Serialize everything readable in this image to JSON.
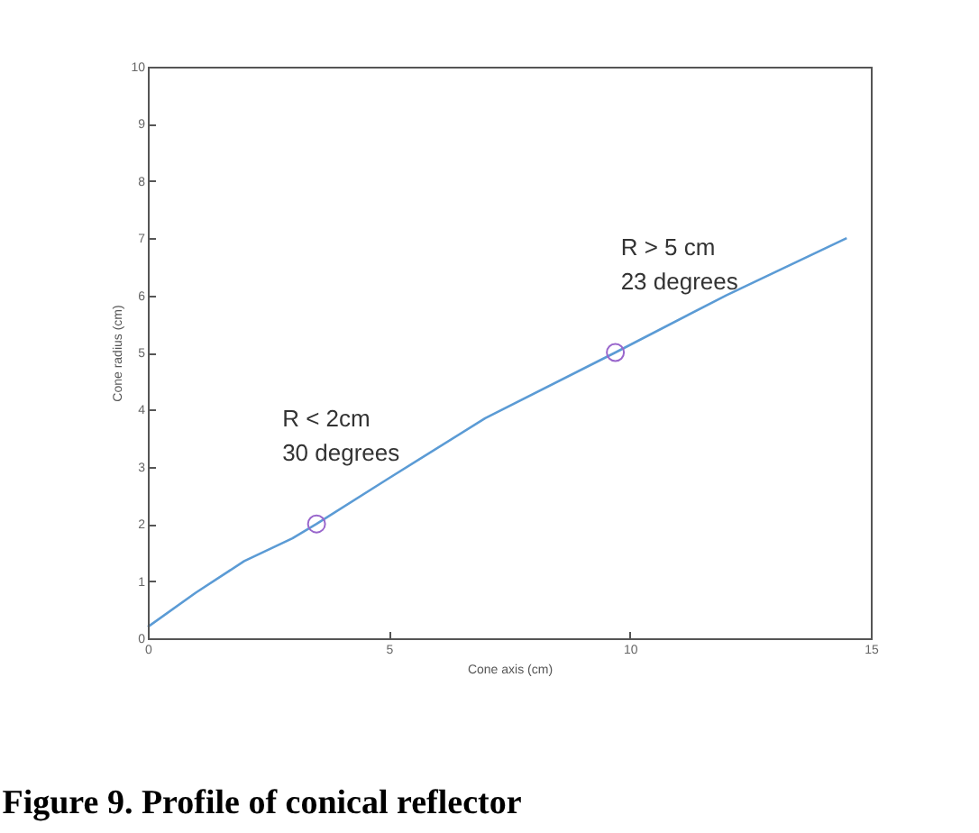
{
  "chart_data": {
    "type": "line",
    "title": "Figure 9. Profile of conical reflector",
    "xlabel": "Cone axis (cm)",
    "ylabel": "Cone radius (cm)",
    "xlim": [
      0,
      15
    ],
    "xticks": [
      0,
      5,
      10,
      15
    ],
    "ylim": [
      0,
      10
    ],
    "yticks": [
      0,
      1,
      2,
      3,
      4,
      5,
      6,
      7,
      8,
      9,
      10
    ],
    "grid": false,
    "series": [
      {
        "color": "#5b9bd5",
        "x": [
          0,
          1,
          2,
          3,
          3.5,
          5,
          7,
          9.7,
          12,
          14.5
        ],
        "values": [
          0.2,
          0.8,
          1.35,
          1.75,
          2,
          2.8,
          3.85,
          5,
          6,
          7
        ]
      },
      {
        "type": "scatter",
        "color": "#9966cc",
        "marker": "circle",
        "x": [
          3.5,
          9.7
        ],
        "values": [
          2,
          5
        ]
      }
    ],
    "annotations": [
      {
        "text": "R < 2cm\n30 degrees",
        "x": 3.5,
        "y": 2
      },
      {
        "text": "R > 5 cm\n23 degrees",
        "x": 9.7,
        "y": 5
      }
    ]
  }
}
